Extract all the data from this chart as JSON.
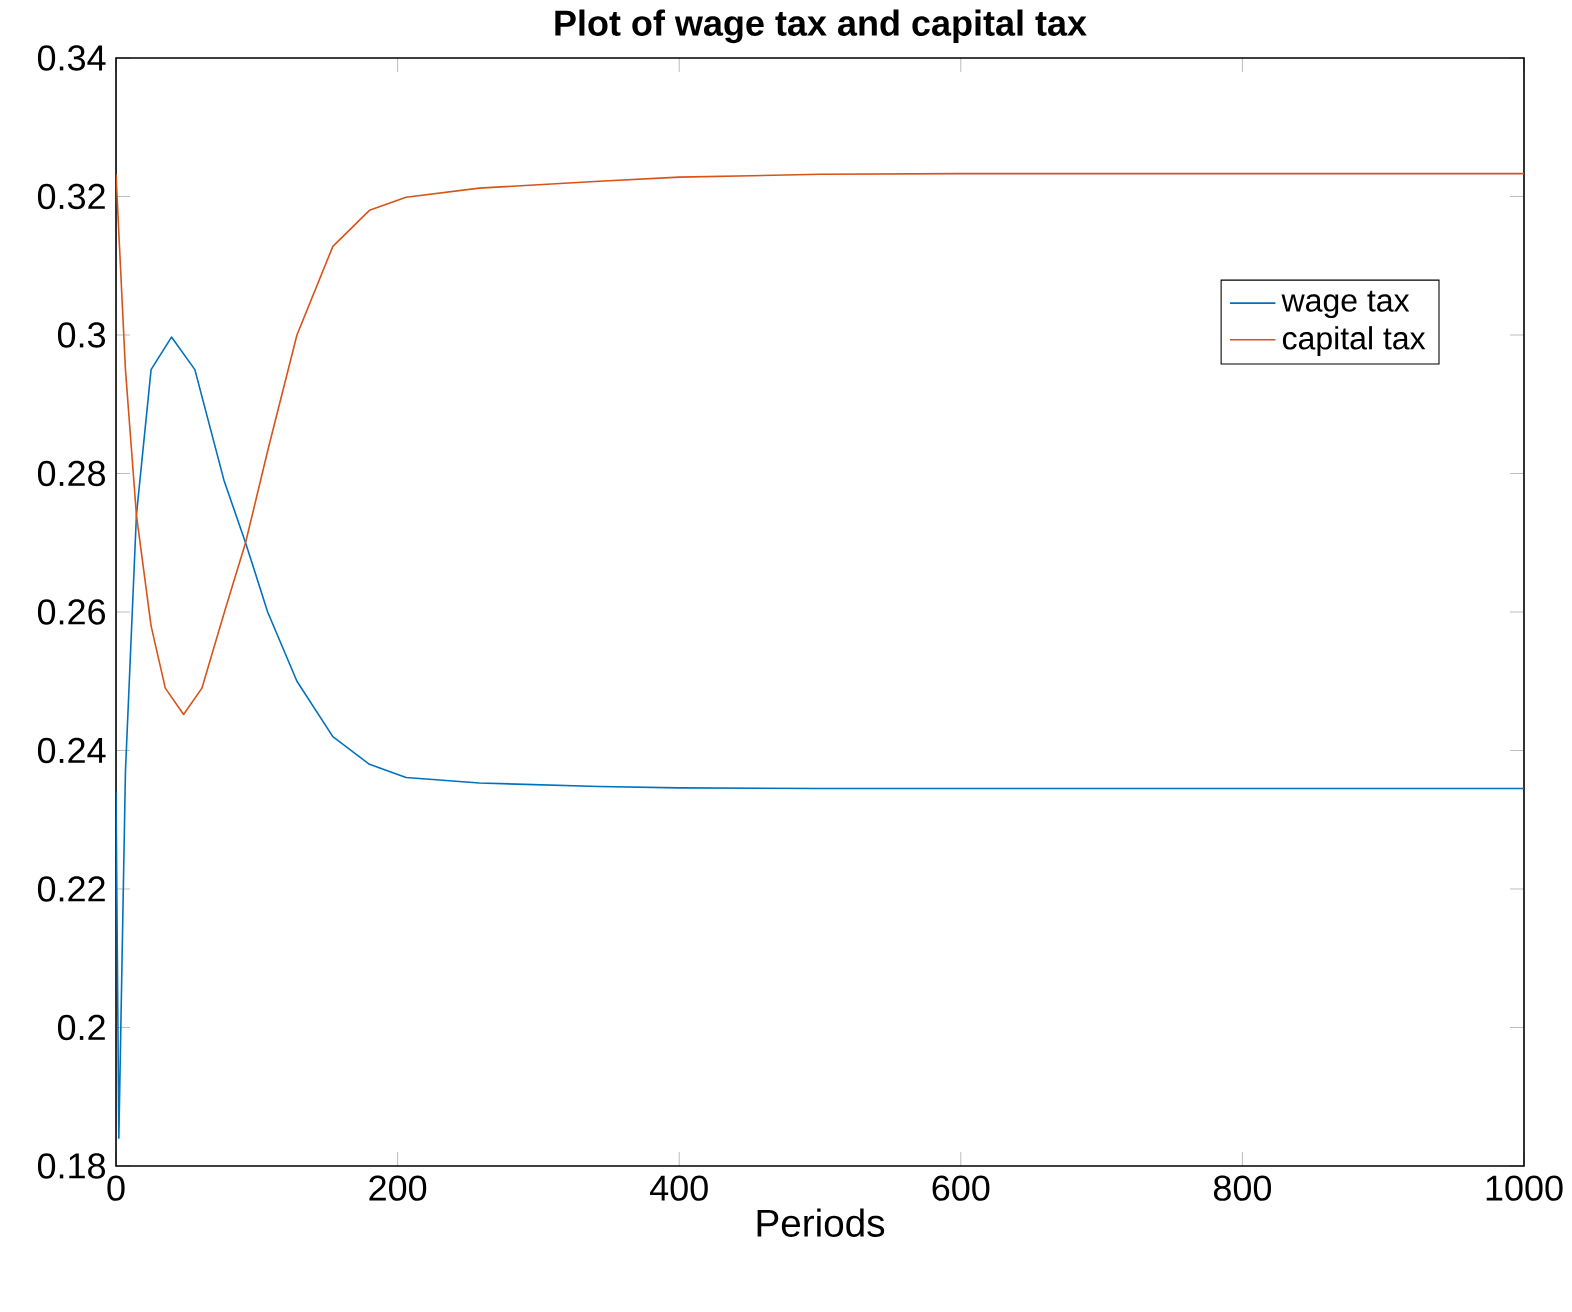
{
  "chart_data": {
    "type": "line",
    "title": "Plot of wage tax and capital tax",
    "xlabel": "Periods",
    "xlim": [
      0,
      1000
    ],
    "ylim": [
      0.18,
      0.34
    ],
    "xticks": [
      0,
      200,
      400,
      600,
      800,
      1000
    ],
    "yticks": [
      0.18,
      0.2,
      0.22,
      0.24,
      0.26,
      0.28,
      0.3,
      0.32,
      0.34
    ],
    "grid": false,
    "legend": "right",
    "line_style": "solid",
    "marker": "none",
    "series": [
      {
        "name": "wage tax",
        "color": "#0072bd",
        "x": [
          0,
          2,
          6.7,
          14.5,
          24.9,
          39.4,
          56,
          76.7,
          92,
          107.7,
          128.5,
          154,
          180,
          206,
          258,
          343,
          400,
          500,
          600,
          800,
          1000
        ],
        "values": [
          0.234,
          0.184,
          0.237,
          0.274,
          0.295,
          0.2997,
          0.295,
          0.279,
          0.27,
          0.26,
          0.25,
          0.242,
          0.238,
          0.2361,
          0.2353,
          0.2348,
          0.2346,
          0.2345,
          0.2345,
          0.2345,
          0.2345
        ]
      },
      {
        "name": "capital tax",
        "color": "#d95319",
        "x": [
          0,
          6.7,
          14.5,
          24.9,
          35,
          48,
          61,
          77,
          92,
          108,
          128.5,
          154,
          180,
          206,
          258,
          343,
          400,
          500,
          600,
          800,
          1000
        ],
        "values": [
          0.3232,
          0.295,
          0.274,
          0.258,
          0.249,
          0.2452,
          0.249,
          0.26,
          0.27,
          0.2835,
          0.3,
          0.3128,
          0.318,
          0.3199,
          0.3212,
          0.3222,
          0.3228,
          0.3232,
          0.3233,
          0.3233,
          0.3233
        ]
      }
    ]
  }
}
